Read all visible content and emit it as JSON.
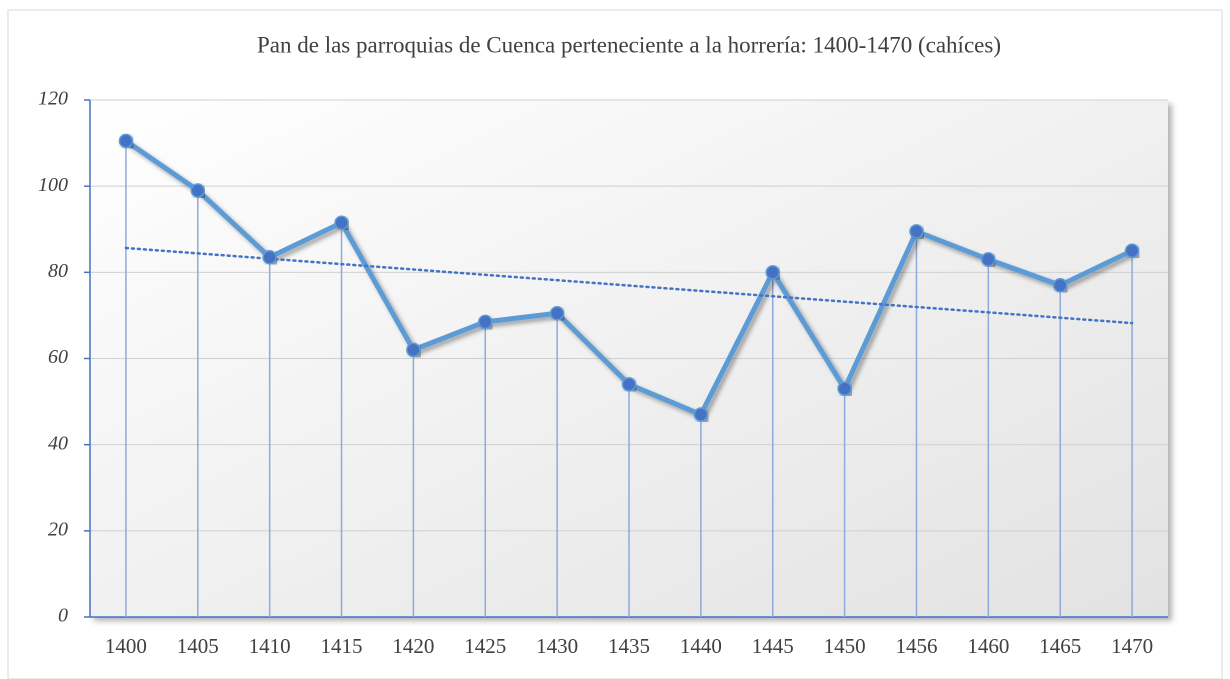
{
  "chart_data": {
    "type": "line",
    "title": "Pan de las parroquias de Cuenca perteneciente a la horrería: 1400-1470 (cahíces)",
    "categories": [
      "1400",
      "1405",
      "1410",
      "1415",
      "1420",
      "1425",
      "1430",
      "1435",
      "1440",
      "1445",
      "1450",
      "1456",
      "1460",
      "1465",
      "1470"
    ],
    "values": [
      110.5,
      99,
      83.5,
      91.5,
      62,
      68.5,
      70.5,
      54,
      47,
      80,
      53,
      89.5,
      83,
      77,
      85
    ],
    "color": "#5b9bd5",
    "marker_color": "#4472c4",
    "ylim": [
      0,
      120
    ],
    "yticks": [
      0,
      20,
      40,
      60,
      80,
      100,
      120
    ],
    "grid": true,
    "trendline": true
  }
}
